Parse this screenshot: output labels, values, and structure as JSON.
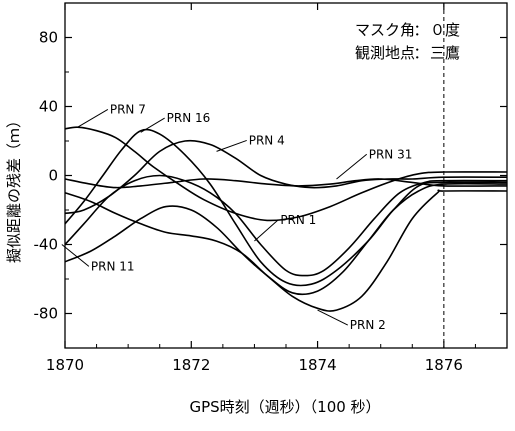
{
  "chart_data": {
    "type": "line",
    "xlabel": "GPS時刻（週秒）（100 秒）",
    "ylabel": "擬似距離の残差（ｍ）",
    "xlim": [
      1870,
      1877
    ],
    "ylim": [
      -100,
      100
    ],
    "xticks": [
      1870,
      1872,
      1874,
      1876
    ],
    "yticks": [
      80,
      40,
      0,
      -40,
      -80
    ],
    "grid": false,
    "vline": 1876,
    "annotations": [
      {
        "key": "マスク角",
        "value": "０度"
      },
      {
        "key": "観測地点",
        "value": "三鷹"
      }
    ],
    "series": [
      {
        "name": "PRN 7",
        "label_at": [
          1870.9,
          36
        ],
        "leader_to": [
          1870.2,
          28
        ],
        "x": [
          1870,
          1870.2,
          1870.5,
          1870.8,
          1871.1,
          1871.4,
          1871.8,
          1872.2,
          1872.7,
          1873.2,
          1873.7,
          1874.2,
          1874.7,
          1875.2,
          1875.6,
          1876,
          1877
        ],
        "y": [
          27,
          28,
          26,
          22,
          14,
          5,
          -5,
          -14,
          -22,
          -26,
          -24,
          -18,
          -10,
          -3,
          1,
          2,
          2
        ]
      },
      {
        "name": "PRN 16",
        "label_at": [
          1871.8,
          31
        ],
        "leader_to": [
          1871.2,
          25
        ],
        "x": [
          1870,
          1870.3,
          1870.6,
          1870.9,
          1871.2,
          1871.5,
          1871.9,
          1872.3,
          1872.7,
          1873.1,
          1873.5,
          1873.9,
          1874.3,
          1874.8,
          1875.2,
          1875.6,
          1876,
          1877
        ],
        "y": [
          -28,
          -15,
          0,
          15,
          26,
          24,
          12,
          -5,
          -28,
          -50,
          -62,
          -63,
          -55,
          -38,
          -20,
          -6,
          -4,
          -4
        ]
      },
      {
        "name": "PRN 4",
        "label_at": [
          1873.1,
          18
        ],
        "leader_to": [
          1872.4,
          14
        ],
        "x": [
          1870,
          1870.3,
          1870.7,
          1871.1,
          1871.5,
          1871.9,
          1872.3,
          1872.7,
          1873.1,
          1873.5,
          1873.9,
          1874.3,
          1874.7,
          1875.1,
          1875.5,
          1876,
          1877
        ],
        "y": [
          -22,
          -20,
          -12,
          0,
          14,
          20,
          18,
          10,
          0,
          -5,
          -7,
          -6,
          -3,
          -2,
          -2,
          -1,
          -1
        ]
      },
      {
        "name": "PRN 31",
        "label_at": [
          1875.0,
          10
        ],
        "leader_to": [
          1874.3,
          -2
        ],
        "x": [
          1870,
          1870.4,
          1870.8,
          1871.2,
          1871.7,
          1872.2,
          1872.7,
          1873.2,
          1873.7,
          1874.2,
          1874.6,
          1875,
          1875.5,
          1876,
          1877
        ],
        "y": [
          -2,
          -5,
          -7,
          -6,
          -4,
          -2,
          -3,
          -5,
          -6,
          -5,
          -3,
          -2,
          -4,
          -6,
          -6
        ]
      },
      {
        "name": "PRN 1",
        "label_at": [
          1873.6,
          -28
        ],
        "leader_to": [
          1873.0,
          -38
        ],
        "x": [
          1870,
          1870.3,
          1870.7,
          1871.1,
          1871.5,
          1871.9,
          1872.3,
          1872.7,
          1873.1,
          1873.5,
          1873.8,
          1874.1,
          1874.5,
          1874.9,
          1875.3,
          1875.7,
          1876,
          1877
        ],
        "y": [
          -40,
          -28,
          -12,
          -3,
          0,
          -3,
          -10,
          -22,
          -40,
          -55,
          -58,
          -55,
          -42,
          -25,
          -10,
          -4,
          -3,
          -3
        ]
      },
      {
        "name": "PRN 11",
        "label_at": [
          1870.6,
          -55
        ],
        "leader_to": [
          1869.95,
          -40
        ],
        "x": [
          1870,
          1870.4,
          1870.8,
          1871.2,
          1871.6,
          1872,
          1872.4,
          1872.8,
          1873.2,
          1873.6,
          1874,
          1874.4,
          1874.8,
          1875.2,
          1875.6,
          1876,
          1877
        ],
        "y": [
          -50,
          -44,
          -35,
          -25,
          -18,
          -20,
          -30,
          -45,
          -58,
          -68,
          -67,
          -56,
          -38,
          -20,
          -9,
          -5,
          -5
        ]
      },
      {
        "name": "PRN 2",
        "label_at": [
          1874.7,
          -89
        ],
        "leader_to": [
          1874.0,
          -78
        ],
        "x": [
          1870,
          1870.4,
          1870.8,
          1871.2,
          1871.6,
          1872,
          1872.4,
          1872.8,
          1873.2,
          1873.6,
          1874,
          1874.3,
          1874.7,
          1875.1,
          1875.5,
          1875.9,
          1876,
          1877
        ],
        "y": [
          -10,
          -15,
          -22,
          -28,
          -33,
          -35,
          -38,
          -45,
          -58,
          -70,
          -77,
          -78,
          -70,
          -50,
          -25,
          -10,
          -9,
          -9
        ]
      }
    ]
  }
}
